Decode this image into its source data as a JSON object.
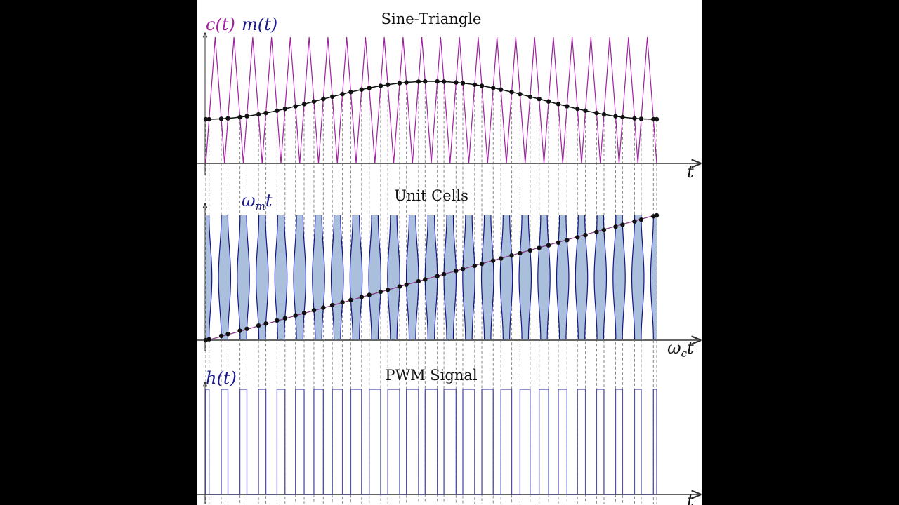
{
  "panels": {
    "sine_triangle": {
      "title": "Sine-Triangle",
      "ylabel_carrier": "c(t)",
      "ylabel_modulation": "m(t)",
      "xlabel": "t"
    },
    "unit_cells": {
      "title": "Unit Cells",
      "ylabel": "ωmt",
      "ylabel_base": "ω",
      "ylabel_sub": "m",
      "ylabel_tail": "t",
      "xlabel_base": "ω",
      "xlabel_sub": "c",
      "xlabel_tail": "t"
    },
    "pwm": {
      "title": "PWM Signal",
      "ylabel": "h(t)",
      "xlabel": "t"
    }
  },
  "chart_data": {
    "type": "line",
    "carrier": {
      "shape": "triangle",
      "periods": 24,
      "min": 0,
      "max": 1,
      "starts_at": "minimum"
    },
    "modulation": {
      "formula": "m(t) = 0.5 - 0.15 cos(2πt/T)",
      "offset": 0.5,
      "amplitude": 0.15,
      "cycles": 1
    },
    "pwm": {
      "rule": "h = 1 when m(t) > c(t)",
      "low": 0,
      "high": 1
    },
    "markers": "intersections of m(t) and c(t)",
    "grid": false
  },
  "colors": {
    "carrier": "#a020a0",
    "modulation_label": "#1a1a8c",
    "modulation_line": "#111111",
    "cell_fill": "#a9bfdc",
    "cell_edge": "#15158a",
    "pwm_line": "#5050a8",
    "axis": "#555555",
    "dash": "#888888"
  }
}
